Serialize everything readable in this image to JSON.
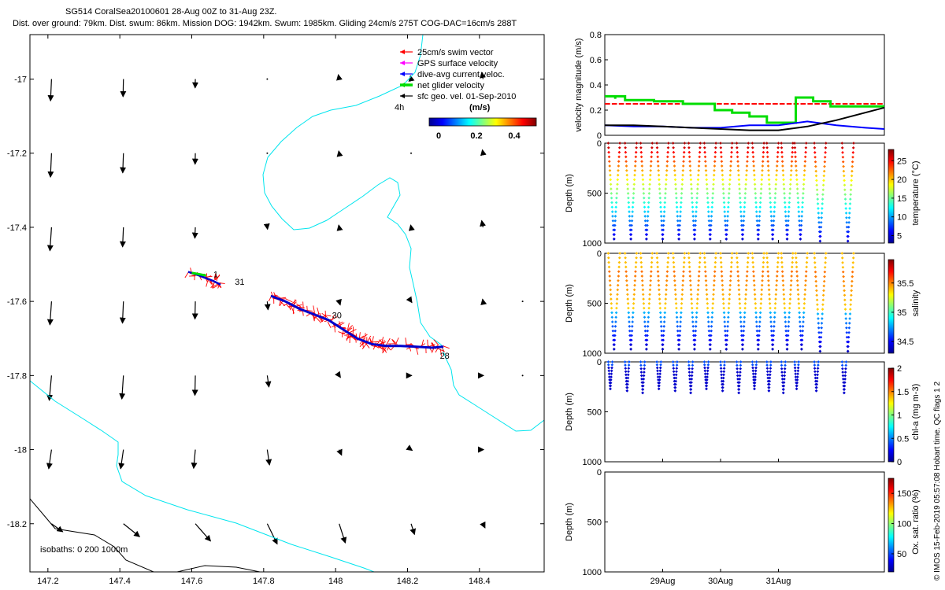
{
  "header": {
    "line1": "SG514 CoralSea20100601 28-Aug 00Z to 31-Aug 23Z.",
    "line2": "Dist. over ground: 79km. Dist. swum: 86km. Mission DOG: 1942km. Swum: 1985km. Gliding 24cm/s 275T COG-DAC=16cm/s 288T"
  },
  "map": {
    "x_ticks": [
      "147.2",
      "147.4",
      "147.6",
      "147.8",
      "148",
      "148.2",
      "148.4"
    ],
    "y_ticks": [
      "-17",
      "-17.2",
      "-17.4",
      "-17.6",
      "-17.8",
      "-18",
      "-18.2"
    ],
    "xlim": [
      147.15,
      148.58
    ],
    "ylim": [
      -18.33,
      -16.88
    ],
    "legend": [
      {
        "label": "25cm/s swim vector",
        "color": "#ff0000"
      },
      {
        "label": "GPS surface velocity",
        "color": "#ff00ff"
      },
      {
        "label": "dive-avg current veloc.",
        "color": "#0000ff"
      },
      {
        "label": "net glider velocity",
        "color": "#00dd00"
      },
      {
        "label": "sfc geo. vel. 01-Sep-2010",
        "color": "#000000"
      }
    ],
    "colorbar": {
      "title": "(m/s)",
      "ticks": [
        "0",
        "0.2",
        "0.4"
      ],
      "note": "4h"
    },
    "isobaths_label": "isobaths: 0   200  1000m",
    "day_labels": [
      {
        "text": "1",
        "lon": 147.66,
        "lat": -17.535
      },
      {
        "text": "31",
        "lon": 147.72,
        "lat": -17.555
      },
      {
        "text": "30",
        "lon": 147.99,
        "lat": -17.645
      },
      {
        "text": "28",
        "lon": 148.29,
        "lat": -17.755
      }
    ]
  },
  "chart_data": [
    {
      "type": "line",
      "title": "velocity magnitude",
      "ylabel": "velocity magnitude (m/s)",
      "ylim": [
        0,
        0.8
      ],
      "yticks": [
        "0",
        "0.2",
        "0.4",
        "0.6",
        "0.8"
      ],
      "xlim": [
        0,
        4.83
      ],
      "series": [
        {
          "name": "25cm/s swim vector",
          "color": "#ff0000",
          "x": [
            0,
            3.3,
            3.3,
            3.7,
            4.05,
            4.83
          ],
          "values": [
            0.25,
            0.25,
            0.25,
            0.25,
            0.25,
            0.25
          ]
        },
        {
          "name": "net glider velocity",
          "color": "#00dd00",
          "x": [
            0,
            0.18,
            0.18,
            0.35,
            0.6,
            0.85,
            1.1,
            1.35,
            1.6,
            1.9,
            2.2,
            2.5,
            2.8,
            3.0,
            3.3,
            3.6,
            3.9,
            4.2,
            4.5,
            4.83
          ],
          "values": [
            0.31,
            0.29,
            0.31,
            0.28,
            0.28,
            0.27,
            0.27,
            0.25,
            0.25,
            0.2,
            0.18,
            0.15,
            0.1,
            0.1,
            0.3,
            0.27,
            0.23,
            0.23,
            0.23,
            0.23
          ]
        },
        {
          "name": "dive-avg current veloc.",
          "color": "#0000ff",
          "x": [
            0,
            0.5,
            1,
            1.5,
            2,
            2.5,
            3,
            3.5,
            4,
            4.5,
            4.83
          ],
          "values": [
            0.08,
            0.07,
            0.07,
            0.06,
            0.06,
            0.08,
            0.08,
            0.11,
            0.08,
            0.06,
            0.05
          ]
        },
        {
          "name": "sfc geo. vel.",
          "color": "#000000",
          "x": [
            0,
            0.5,
            1,
            1.5,
            2,
            2.5,
            3,
            3.5,
            4,
            4.5,
            4.83
          ],
          "values": [
            0.08,
            0.08,
            0.07,
            0.06,
            0.05,
            0.04,
            0.04,
            0.07,
            0.12,
            0.18,
            0.22
          ]
        }
      ]
    },
    {
      "type": "scatter",
      "title": "temperature",
      "ylabel": "Depth (m)",
      "ylim": [
        1000,
        0
      ],
      "yticks": [
        "0",
        "500",
        "1000"
      ],
      "colorbar_label": "temperature (°C)",
      "colorbar_ticks": [
        "5",
        "10",
        "15",
        "20",
        "25"
      ],
      "crange": [
        3,
        28
      ]
    },
    {
      "type": "scatter",
      "title": "salinity",
      "ylabel": "Depth (m)",
      "ylim": [
        1000,
        0
      ],
      "yticks": [
        "0",
        "500",
        "1000"
      ],
      "colorbar_label": "salinity",
      "colorbar_ticks": [
        "34.5",
        "35",
        "35.5"
      ],
      "crange": [
        34.3,
        35.9
      ]
    },
    {
      "type": "scatter",
      "title": "chl-a",
      "ylabel": "Depth (m)",
      "ylim": [
        1000,
        0
      ],
      "yticks": [
        "0",
        "500",
        "1000"
      ],
      "colorbar_label": "chl-a (mg m-3)",
      "colorbar_ticks": [
        "0",
        "0.5",
        "1",
        "1.5",
        "2"
      ],
      "crange": [
        0,
        2
      ]
    },
    {
      "type": "scatter",
      "title": "Ox. sat. ratio",
      "ylabel": "Depth (m)",
      "ylim": [
        1000,
        0
      ],
      "yticks": [
        "0",
        "500",
        "1000"
      ],
      "colorbar_label": "Ox. sat. ratio (%)",
      "colorbar_ticks": [
        "50",
        "100",
        "150"
      ],
      "crange": [
        20,
        175
      ],
      "x_ticks": [
        "29Aug",
        "30Aug",
        "31Aug"
      ]
    }
  ],
  "footer": {
    "credit": "© IMOS 15-Feb-2019 05:57:08 Hobart time. QC flags 1  2"
  },
  "colors": {
    "coast": "#00e5ee",
    "isobath": "#000000"
  }
}
